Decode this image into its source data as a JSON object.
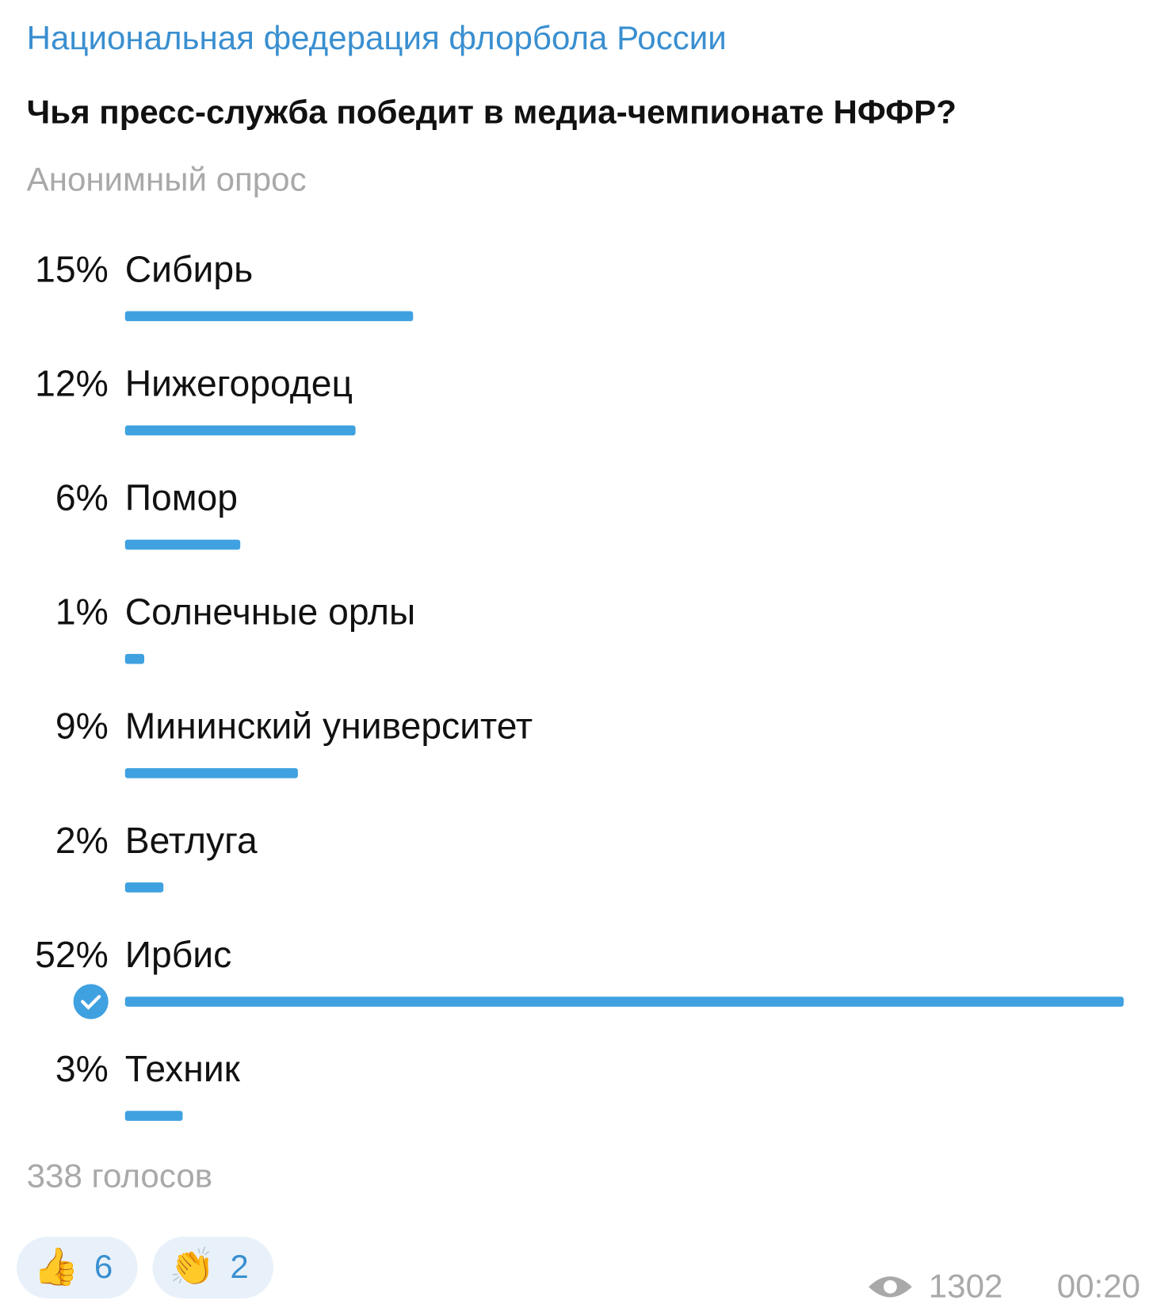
{
  "header": {
    "channel": "Национальная федерация флорбола России"
  },
  "poll": {
    "question": "Чья пресс-служба победит в медиа-чемпионате НФФР?",
    "kind": "Анонимный опрос",
    "options": [
      {
        "percent": 15,
        "percent_label": "15%",
        "text": "Сибирь"
      },
      {
        "percent": 12,
        "percent_label": "12%",
        "text": "Нижегородец"
      },
      {
        "percent": 6,
        "percent_label": "6%",
        "text": "Помор"
      },
      {
        "percent": 1,
        "percent_label": "1%",
        "text": "Солнечные орлы"
      },
      {
        "percent": 9,
        "percent_label": "9%",
        "text": "Мининский университет"
      },
      {
        "percent": 2,
        "percent_label": "2%",
        "text": "Ветлуга"
      },
      {
        "percent": 52,
        "percent_label": "52%",
        "text": "Ирбис"
      },
      {
        "percent": 3,
        "percent_label": "3%",
        "text": "Техник"
      }
    ],
    "selected_option": 6,
    "bar_color": "#40a1e0",
    "votes": "338 голосов"
  },
  "footer": {
    "reactions": [
      {
        "emoji": "👍",
        "count": 6
      },
      {
        "emoji": "👏",
        "count": 2
      }
    ],
    "views": 1302,
    "time": "00:20"
  }
}
